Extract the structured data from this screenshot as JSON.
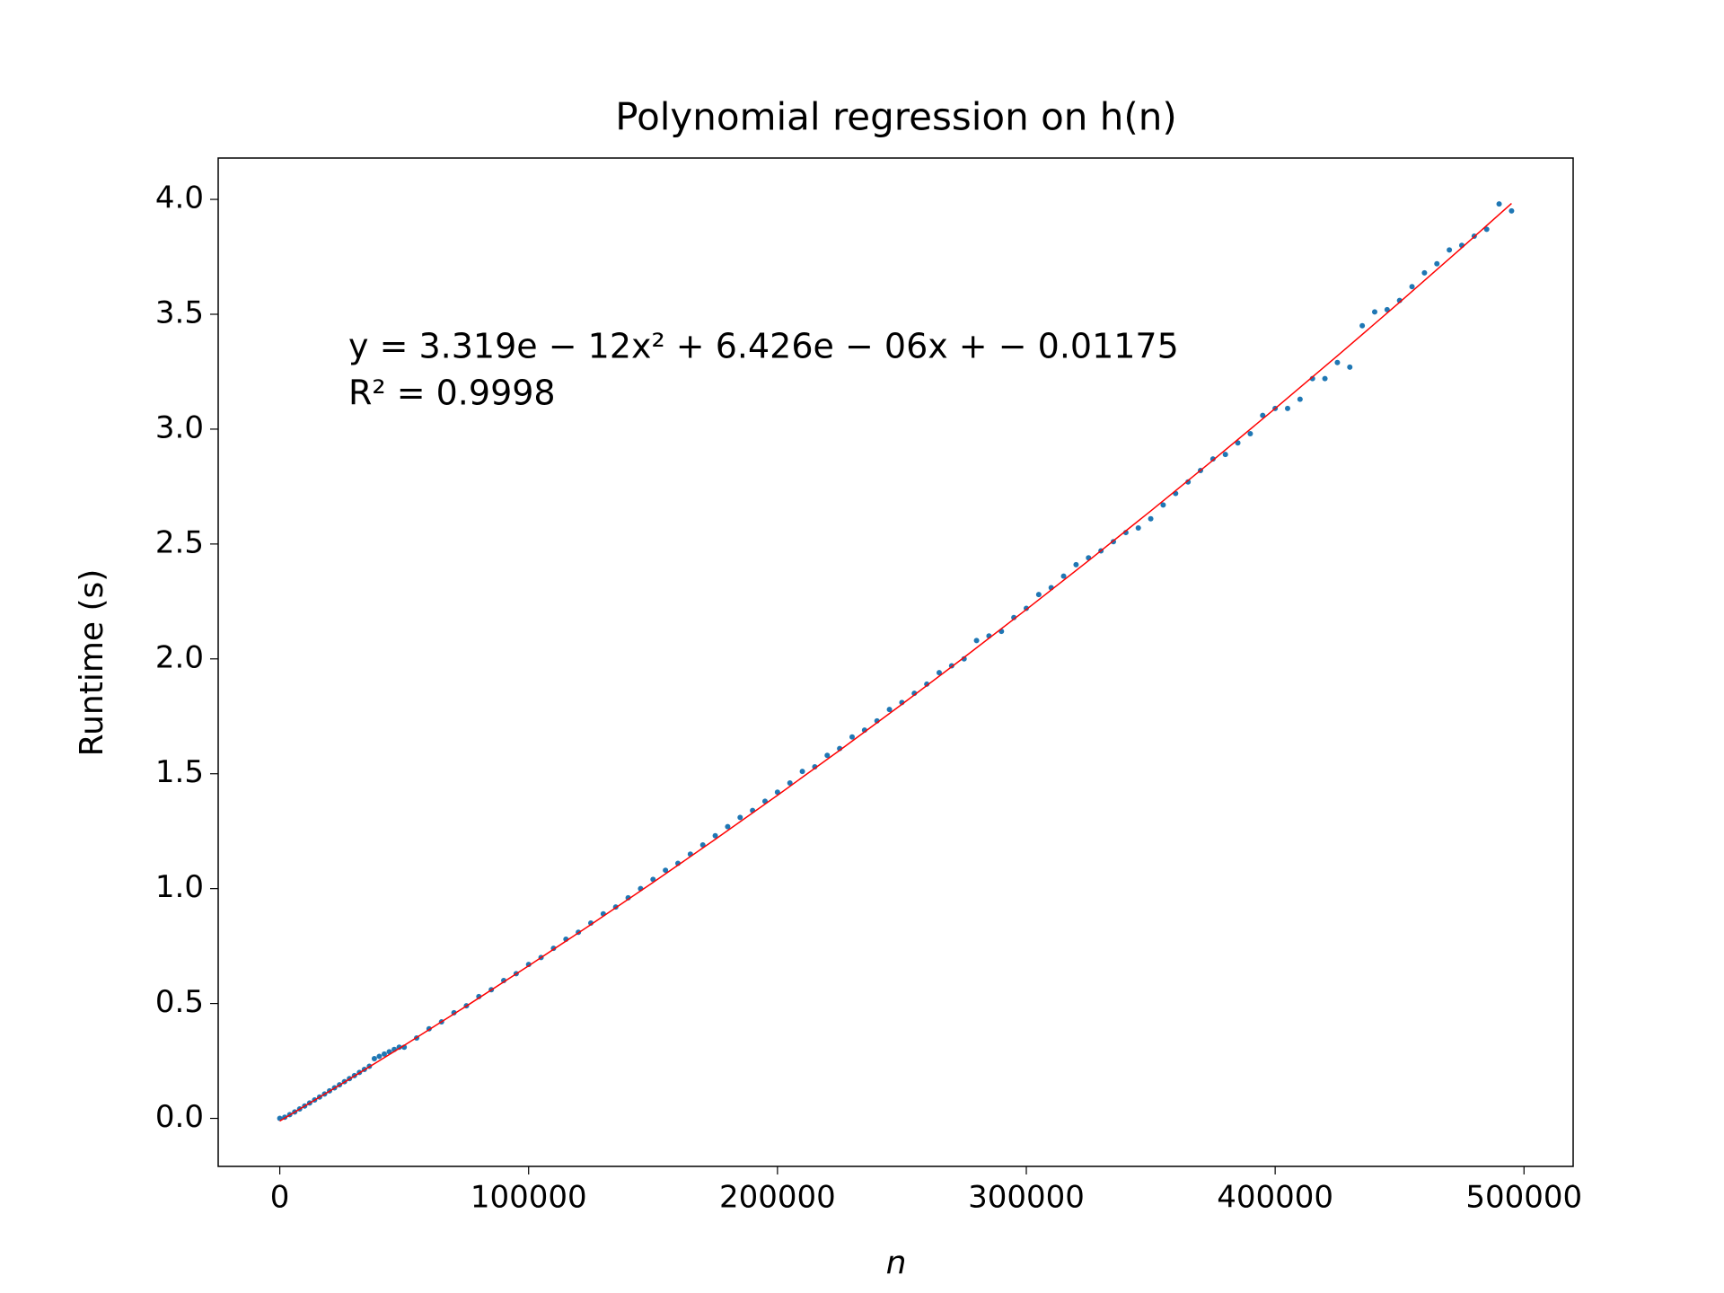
{
  "chart_data": {
    "type": "scatter",
    "title": "Polynomial regression on h(n)",
    "x_label": "n",
    "y_label": "Runtime (s)",
    "annotations": [
      "y = 3.319e − 12x² + 6.426e − 06x + − 0.01175",
      "R² = 0.9998"
    ],
    "xlim": [
      -24750,
      519750
    ],
    "ylim": [
      -0.209,
      4.18
    ],
    "xticks": [
      0,
      100000,
      200000,
      300000,
      400000,
      500000
    ],
    "yticks": [
      {
        "value": 0,
        "label": "0.0"
      },
      0.5,
      {
        "value": 1,
        "label": "1.0"
      },
      1.5,
      {
        "value": 2,
        "label": "2.0"
      },
      2.5,
      {
        "value": 3,
        "label": "3.0"
      },
      3.5,
      {
        "value": 4,
        "label": "4.0"
      }
    ],
    "series": [
      {
        "type": "scatter",
        "color": "#1f77b4",
        "x": [
          0,
          2000,
          4000,
          6000,
          8000,
          10000,
          12000,
          14000,
          16000,
          18000,
          20000,
          22000,
          24000,
          26000,
          28000,
          30000,
          32000,
          34000,
          36000,
          38000,
          40000,
          42000,
          44000,
          46000,
          48000,
          50000,
          55000,
          60000,
          65000,
          70000,
          75000,
          80000,
          85000,
          90000,
          95000,
          100000,
          105000,
          110000,
          115000,
          120000,
          125000,
          130000,
          135000,
          140000,
          145000,
          150000,
          155000,
          160000,
          165000,
          170000,
          175000,
          180000,
          185000,
          190000,
          195000,
          200000,
          205000,
          210000,
          215000,
          220000,
          225000,
          230000,
          235000,
          240000,
          245000,
          250000,
          255000,
          260000,
          265000,
          270000,
          275000,
          280000,
          285000,
          290000,
          295000,
          300000,
          305000,
          310000,
          315000,
          320000,
          325000,
          330000,
          335000,
          340000,
          345000,
          350000,
          355000,
          360000,
          365000,
          370000,
          375000,
          380000,
          385000,
          390000,
          395000,
          400000,
          405000,
          410000,
          415000,
          420000,
          425000,
          430000,
          435000,
          440000,
          445000,
          450000,
          455000,
          460000,
          465000,
          470000,
          475000,
          480000,
          485000,
          490000,
          495000
        ],
        "values": [
          0.0,
          0.005,
          0.016,
          0.028,
          0.041,
          0.054,
          0.067,
          0.08,
          0.093,
          0.106,
          0.12,
          0.133,
          0.146,
          0.16,
          0.173,
          0.186,
          0.2,
          0.213,
          0.227,
          0.26,
          0.27,
          0.28,
          0.29,
          0.3,
          0.31,
          0.31,
          0.35,
          0.39,
          0.42,
          0.46,
          0.49,
          0.53,
          0.56,
          0.6,
          0.63,
          0.67,
          0.7,
          0.74,
          0.78,
          0.81,
          0.85,
          0.89,
          0.92,
          0.96,
          1.0,
          1.04,
          1.08,
          1.11,
          1.15,
          1.19,
          1.23,
          1.27,
          1.31,
          1.34,
          1.38,
          1.42,
          1.46,
          1.51,
          1.53,
          1.58,
          1.61,
          1.66,
          1.69,
          1.73,
          1.78,
          1.81,
          1.85,
          1.89,
          1.94,
          1.97,
          2.0,
          2.08,
          2.1,
          2.12,
          2.18,
          2.22,
          2.28,
          2.31,
          2.36,
          2.41,
          2.44,
          2.47,
          2.51,
          2.55,
          2.57,
          2.61,
          2.67,
          2.72,
          2.77,
          2.82,
          2.87,
          2.89,
          2.94,
          2.98,
          3.06,
          3.09,
          3.09,
          3.13,
          3.22,
          3.22,
          3.29,
          3.27,
          3.45,
          3.51,
          3.52,
          3.56,
          3.62,
          3.68,
          3.72,
          3.78,
          3.8,
          3.84,
          3.87,
          3.98,
          3.95
        ]
      },
      {
        "type": "line",
        "color": "#ff0000",
        "x": [
          0,
          25000,
          50000,
          75000,
          100000,
          125000,
          150000,
          175000,
          200000,
          225000,
          250000,
          275000,
          300000,
          325000,
          350000,
          375000,
          400000,
          425000,
          450000,
          475000,
          495000
        ],
        "values": [
          -0.0118,
          0.151,
          0.3178,
          0.4889,
          0.664,
          0.8434,
          1.0268,
          1.2144,
          1.4062,
          1.6021,
          1.8022,
          2.0064,
          2.2148,
          2.4273,
          2.6439,
          2.8647,
          3.0897,
          3.3188,
          3.552,
          3.7894,
          3.9824
        ]
      }
    ]
  }
}
